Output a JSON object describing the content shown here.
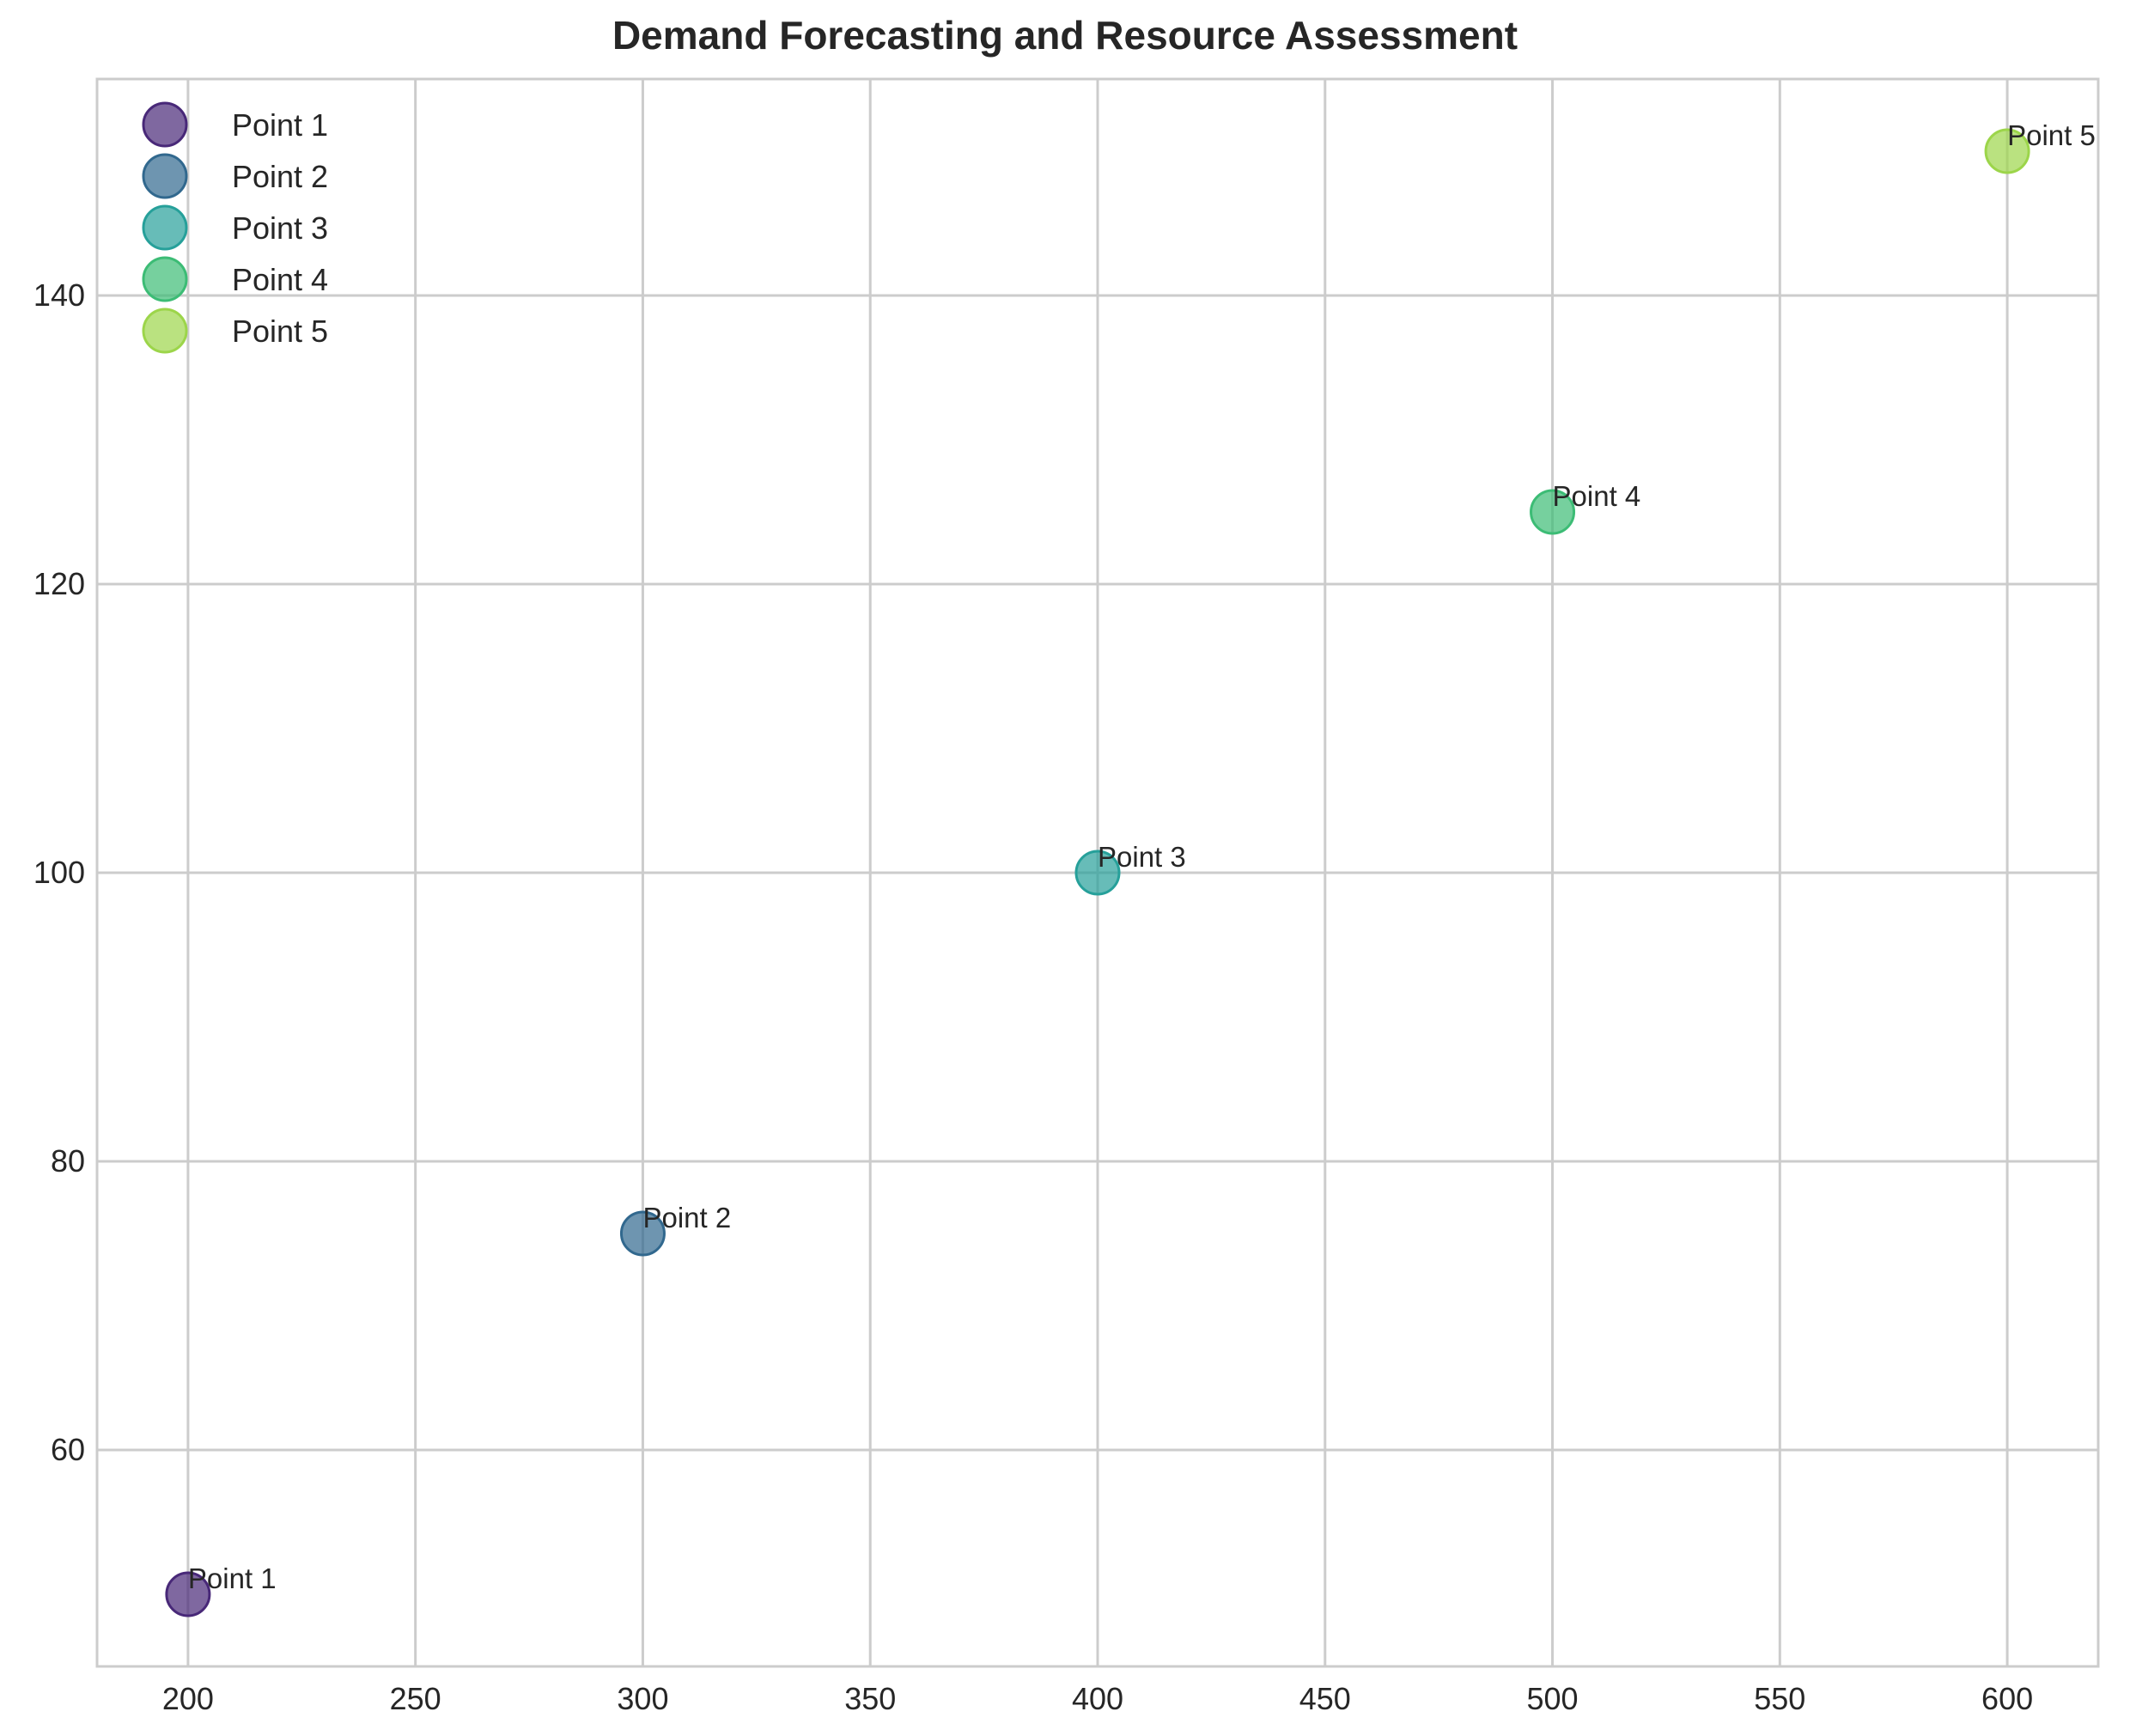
{
  "chart_data": {
    "type": "scatter",
    "title": "Demand Forecasting and Resource Assessment",
    "xlabel": "",
    "ylabel": "",
    "xlim": [
      180,
      620
    ],
    "ylim": [
      45,
      155
    ],
    "xticks": [
      200,
      250,
      300,
      350,
      400,
      450,
      500,
      550,
      600
    ],
    "yticks": [
      60,
      80,
      100,
      120,
      140
    ],
    "grid": true,
    "legend_position": "top-left",
    "series": [
      {
        "name": "Point 1",
        "x": 200,
        "y": 50,
        "color": "#482878",
        "label": "Point 1"
      },
      {
        "name": "Point 2",
        "x": 300,
        "y": 75,
        "color": "#31688e",
        "label": "Point 2"
      },
      {
        "name": "Point 3",
        "x": 400,
        "y": 100,
        "color": "#26a09a",
        "label": "Point 3"
      },
      {
        "name": "Point 4",
        "x": 500,
        "y": 125,
        "color": "#3cbc75",
        "label": "Point 4"
      },
      {
        "name": "Point 5",
        "x": 600,
        "y": 150,
        "color": "#9cd54a",
        "label": "Point 5"
      }
    ]
  }
}
